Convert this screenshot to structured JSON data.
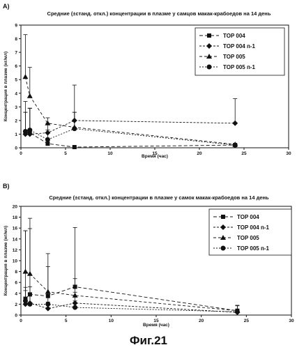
{
  "figure_caption": "Фиг.21",
  "chart_data": [
    {
      "type": "line",
      "panel": "A)",
      "title": "Средние (±станд. откл.) концентрации в плазме у самцов макак-крабоедов на 14 день",
      "xlabel": "Время (час)",
      "ylabel": "Концентрация в плазме (нг/мл)",
      "xlim": [
        0,
        30
      ],
      "ylim": [
        0,
        9
      ],
      "xticks": [
        "0",
        "5",
        "10",
        "15",
        "20",
        "25",
        "30"
      ],
      "yticks": [
        "0",
        "1",
        "2",
        "3",
        "4",
        "5",
        "6",
        "7",
        "8",
        "9"
      ],
      "grid": false,
      "legend_position": "top-right",
      "series": [
        {
          "name": "TOP 004",
          "marker": "square",
          "x": [
            0.5,
            1,
            3,
            6,
            24
          ],
          "y": [
            1.1,
            1.1,
            0.3,
            0.05,
            0.2
          ],
          "err": [
            2.3,
            1.8,
            0.3,
            0,
            0
          ]
        },
        {
          "name": "TOP 004 п-1",
          "marker": "diamond",
          "x": [
            0.5,
            1,
            3,
            6,
            24
          ],
          "y": [
            1.0,
            1.0,
            1.1,
            2.0,
            1.8
          ],
          "err": [
            1.6,
            1.9,
            0.7,
            2.6,
            1.8
          ]
        },
        {
          "name": "TOP 005",
          "marker": "triangle",
          "x": [
            0.5,
            1,
            3,
            6,
            24
          ],
          "y": [
            5.2,
            3.8,
            1.8,
            1.5,
            0.25
          ],
          "err": [
            3.1,
            2.1,
            0.4,
            1.1,
            0
          ]
        },
        {
          "name": "TOP 005 п-1",
          "marker": "circle",
          "x": [
            0.5,
            1,
            3,
            6,
            24
          ],
          "y": [
            1.2,
            1.3,
            0.6,
            1.4,
            0.2
          ],
          "err": [
            1.4,
            1.6,
            0.7,
            1.2,
            0
          ]
        }
      ]
    },
    {
      "type": "line",
      "panel": "B)",
      "title": "Средние (±станд. откл.) концентрации в плазме у самок макак-крабоедов на 14 день",
      "xlabel": "Время (час)",
      "ylabel": "Концентрация в плазме (нг/мл)",
      "xlim": [
        0,
        30
      ],
      "ylim": [
        0,
        20
      ],
      "xticks": [
        "0",
        "5",
        "10",
        "15",
        "20",
        "25",
        "30"
      ],
      "yticks": [
        "0",
        "2",
        "4",
        "6",
        "8",
        "10",
        "12",
        "14",
        "16",
        "18",
        "20"
      ],
      "grid": false,
      "legend_position": "top-right",
      "series": [
        {
          "name": "TOP 004",
          "marker": "square",
          "x": [
            0.5,
            1,
            3,
            6,
            24
          ],
          "y": [
            3.0,
            3.8,
            3.5,
            5.2,
            0.8
          ],
          "err": [
            12.5,
            14.0,
            7.8,
            10.9,
            1.0
          ]
        },
        {
          "name": "TOP 004 п-1",
          "marker": "diamond",
          "x": [
            0.5,
            1,
            3,
            6,
            24
          ],
          "y": [
            2.0,
            2.2,
            1.2,
            2.2,
            0.5
          ],
          "err": [
            2.5,
            3.0,
            1.2,
            2.0,
            0.3
          ]
        },
        {
          "name": "TOP 005",
          "marker": "triangle",
          "x": [
            0.5,
            1,
            3,
            6,
            24
          ],
          "y": [
            8.0,
            7.6,
            4.3,
            3.6,
            0.8
          ],
          "err": [
            7.5,
            8.3,
            4.6,
            3.1,
            0.9
          ]
        },
        {
          "name": "TOP 005 п-1",
          "marker": "circle",
          "x": [
            0.5,
            1,
            3,
            6,
            24
          ],
          "y": [
            2.6,
            2.0,
            2.0,
            1.4,
            0.6
          ],
          "err": [
            2.5,
            2.0,
            1.8,
            1.2,
            0.4
          ]
        }
      ]
    }
  ]
}
